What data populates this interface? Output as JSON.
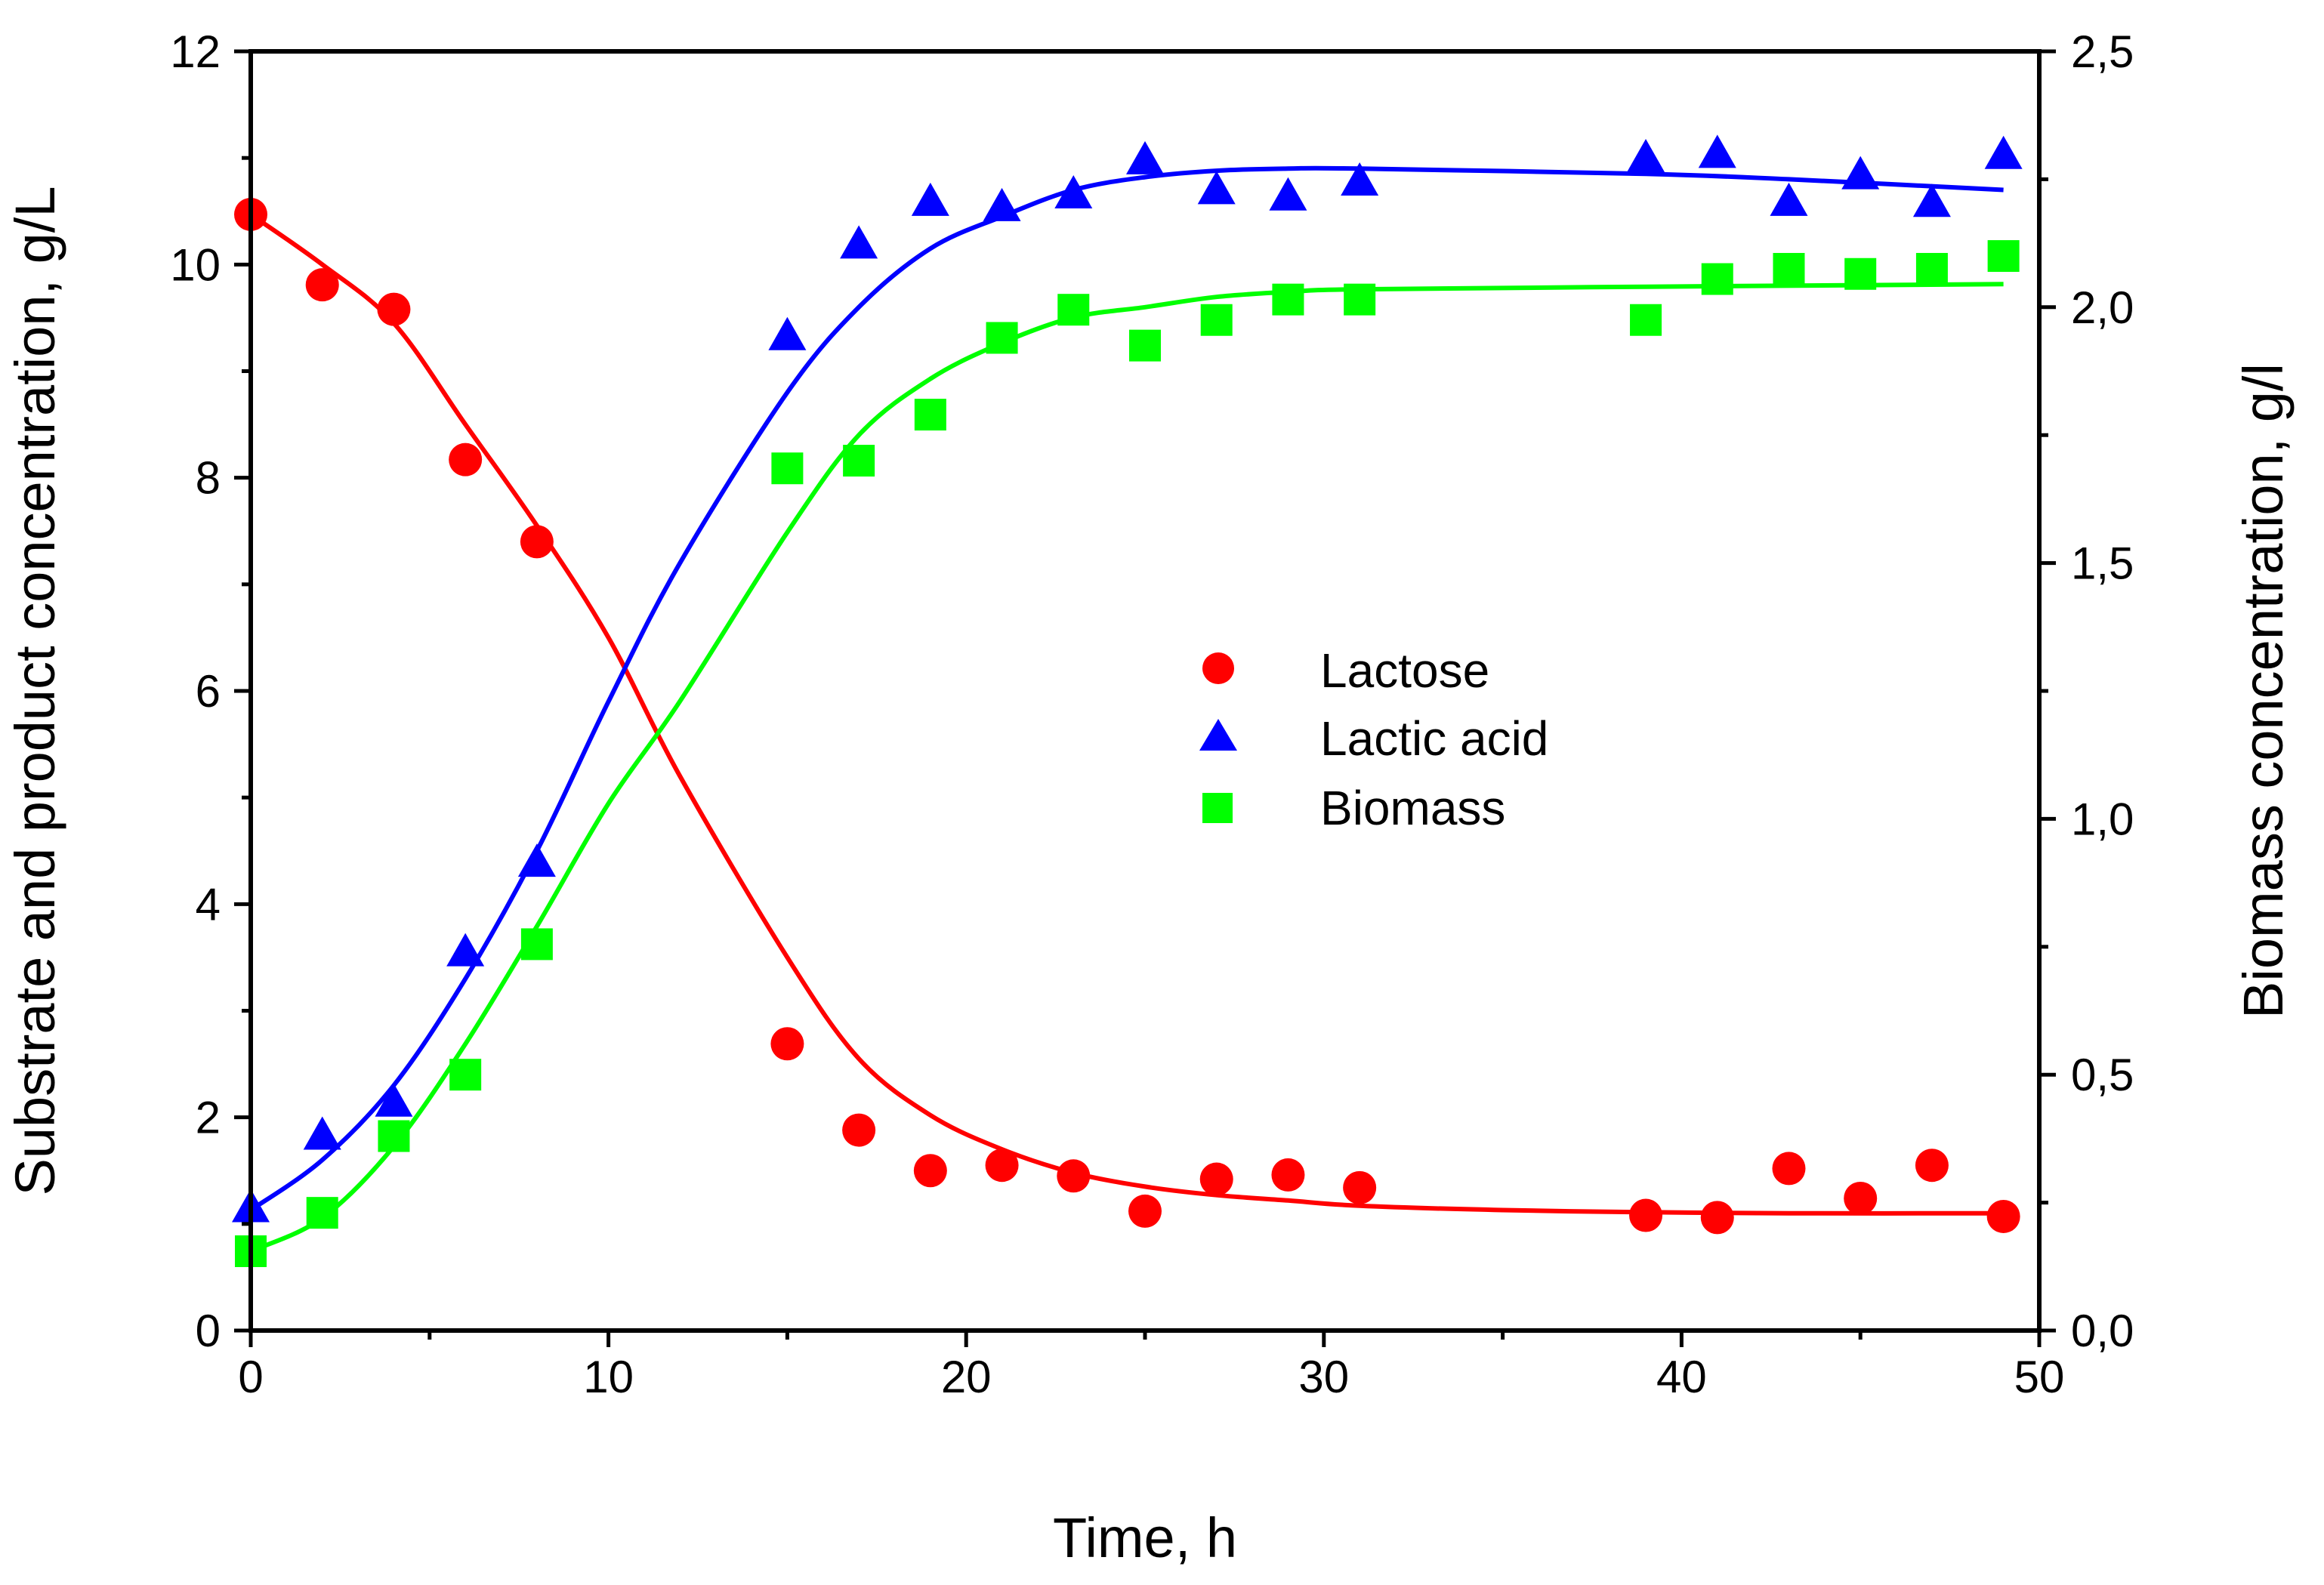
{
  "chart_data": {
    "type": "scatter",
    "xlabel": "Time, h",
    "ylabel": "Substrate and product concentration, g/L",
    "y2label": "Biomass concentration, g/l",
    "xlim": [
      0,
      50
    ],
    "ylim": [
      0,
      12
    ],
    "y2lim": [
      0,
      2.5
    ],
    "xticks": [
      "0",
      "10",
      "20",
      "30",
      "40",
      "50"
    ],
    "yticks": [
      "0",
      "2",
      "4",
      "6",
      "8",
      "10",
      "12"
    ],
    "y2ticks": [
      "0,0",
      "0,5",
      "1,0",
      "1,5",
      "2,0",
      "2,5"
    ],
    "grid": false,
    "legend_position": "center",
    "series": [
      {
        "name": "Lactose",
        "axis": "left",
        "marker": "circle",
        "color": "#ff0000",
        "points": [
          [
            0,
            10.47
          ],
          [
            2,
            9.81
          ],
          [
            4,
            9.58
          ],
          [
            6,
            8.17
          ],
          [
            8,
            7.4
          ],
          [
            15,
            2.69
          ],
          [
            17,
            1.88
          ],
          [
            19,
            1.5
          ],
          [
            21,
            1.55
          ],
          [
            23,
            1.45
          ],
          [
            25,
            1.12
          ],
          [
            27,
            1.42
          ],
          [
            29,
            1.46
          ],
          [
            31,
            1.34
          ],
          [
            39,
            1.08
          ],
          [
            41,
            1.06
          ],
          [
            43,
            1.52
          ],
          [
            45,
            1.24
          ],
          [
            47,
            1.55
          ],
          [
            49,
            1.07
          ]
        ],
        "fit": [
          [
            0,
            10.47
          ],
          [
            2,
            10.0
          ],
          [
            4,
            9.45
          ],
          [
            6,
            8.5
          ],
          [
            8,
            7.55
          ],
          [
            10,
            6.5
          ],
          [
            12,
            5.2
          ],
          [
            15,
            3.5
          ],
          [
            17,
            2.55
          ],
          [
            19,
            2.02
          ],
          [
            21,
            1.7
          ],
          [
            23,
            1.48
          ],
          [
            25,
            1.35
          ],
          [
            27,
            1.27
          ],
          [
            29,
            1.22
          ],
          [
            31,
            1.17
          ],
          [
            35,
            1.13
          ],
          [
            39,
            1.11
          ],
          [
            43,
            1.1
          ],
          [
            49,
            1.1
          ]
        ]
      },
      {
        "name": "Lactic acid",
        "axis": "left",
        "marker": "triangle",
        "color": "#0000ff",
        "points": [
          [
            0,
            1.13
          ],
          [
            2,
            1.81
          ],
          [
            4,
            2.12
          ],
          [
            6,
            3.53
          ],
          [
            8,
            4.37
          ],
          [
            15,
            9.31
          ],
          [
            17,
            10.17
          ],
          [
            19,
            10.57
          ],
          [
            21,
            10.52
          ],
          [
            23,
            10.64
          ],
          [
            25,
            10.96
          ],
          [
            27,
            10.68
          ],
          [
            29,
            10.62
          ],
          [
            31,
            10.76
          ],
          [
            39,
            10.98
          ],
          [
            41,
            11.02
          ],
          [
            43,
            10.57
          ],
          [
            45,
            10.82
          ],
          [
            47,
            10.56
          ],
          [
            49,
            11.01
          ]
        ],
        "fit": [
          [
            0,
            1.13
          ],
          [
            2,
            1.6
          ],
          [
            4,
            2.3
          ],
          [
            6,
            3.3
          ],
          [
            8,
            4.5
          ],
          [
            10,
            5.9
          ],
          [
            12,
            7.2
          ],
          [
            15,
            8.8
          ],
          [
            17,
            9.6
          ],
          [
            19,
            10.15
          ],
          [
            21,
            10.45
          ],
          [
            23,
            10.7
          ],
          [
            25,
            10.82
          ],
          [
            27,
            10.88
          ],
          [
            29,
            10.9
          ],
          [
            31,
            10.9
          ],
          [
            39,
            10.85
          ],
          [
            43,
            10.8
          ],
          [
            49,
            10.7
          ]
        ]
      },
      {
        "name": "Biomass",
        "axis": "right",
        "marker": "square",
        "color": "#00ff00",
        "points": [
          [
            0,
            0.155
          ],
          [
            2,
            0.23
          ],
          [
            4,
            0.38
          ],
          [
            6,
            0.5
          ],
          [
            8,
            0.755
          ],
          [
            15,
            1.685
          ],
          [
            17,
            1.7
          ],
          [
            19,
            1.79
          ],
          [
            21,
            1.94
          ],
          [
            23,
            1.995
          ],
          [
            25,
            1.925
          ],
          [
            27,
            1.975
          ],
          [
            29,
            2.015
          ],
          [
            31,
            2.015
          ],
          [
            39,
            1.975
          ],
          [
            41,
            2.055
          ],
          [
            43,
            2.075
          ],
          [
            45,
            2.065
          ],
          [
            47,
            2.075
          ],
          [
            49,
            2.1
          ]
        ],
        "fit": [
          [
            0,
            0.155
          ],
          [
            2,
            0.22
          ],
          [
            4,
            0.36
          ],
          [
            6,
            0.56
          ],
          [
            8,
            0.79
          ],
          [
            10,
            1.03
          ],
          [
            12,
            1.23
          ],
          [
            15,
            1.56
          ],
          [
            17,
            1.75
          ],
          [
            19,
            1.86
          ],
          [
            21,
            1.93
          ],
          [
            23,
            1.98
          ],
          [
            25,
            2.0
          ],
          [
            27,
            2.02
          ],
          [
            29,
            2.03
          ],
          [
            31,
            2.035
          ],
          [
            39,
            2.04
          ],
          [
            49,
            2.045
          ]
        ]
      }
    ]
  }
}
